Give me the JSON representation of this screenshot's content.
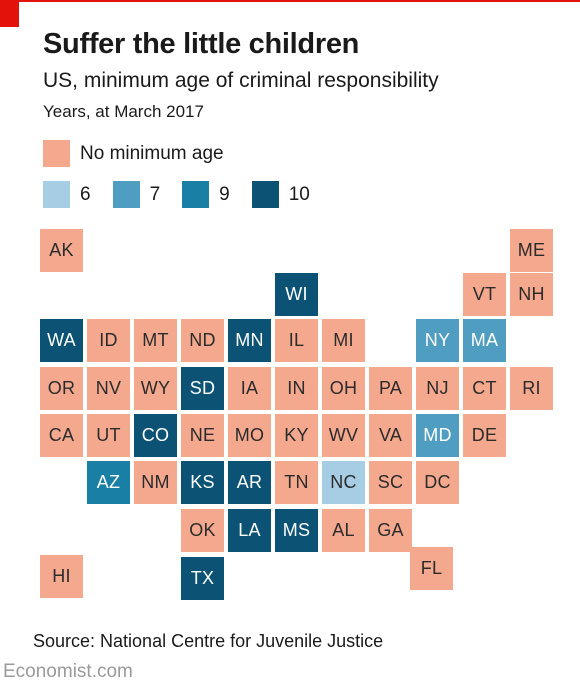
{
  "header": {
    "title": "Suffer the little children",
    "subtitle": "US, minimum age of criminal responsibility",
    "units": "Years, at March 2017"
  },
  "legend": {
    "no_minimum": {
      "label": "No minimum age",
      "color": "#f4a98f"
    },
    "ages": [
      {
        "label": "6",
        "color": "#a6cde3"
      },
      {
        "label": "7",
        "color": "#4f9dc1"
      },
      {
        "label": "9",
        "color": "#1a7fa5"
      },
      {
        "label": "10",
        "color": "#0b5274"
      }
    ]
  },
  "map_data": {
    "type": "tile-map",
    "states": [
      {
        "abbr": "AK",
        "age": null
      },
      {
        "abbr": "ME",
        "age": null
      },
      {
        "abbr": "WI",
        "age": 10
      },
      {
        "abbr": "VT",
        "age": null
      },
      {
        "abbr": "NH",
        "age": null
      },
      {
        "abbr": "WA",
        "age": 10
      },
      {
        "abbr": "ID",
        "age": null
      },
      {
        "abbr": "MT",
        "age": null
      },
      {
        "abbr": "ND",
        "age": null
      },
      {
        "abbr": "MN",
        "age": 10
      },
      {
        "abbr": "IL",
        "age": null
      },
      {
        "abbr": "MI",
        "age": null
      },
      {
        "abbr": "NY",
        "age": 7
      },
      {
        "abbr": "MA",
        "age": 7
      },
      {
        "abbr": "OR",
        "age": null
      },
      {
        "abbr": "NV",
        "age": null
      },
      {
        "abbr": "WY",
        "age": null
      },
      {
        "abbr": "SD",
        "age": 10
      },
      {
        "abbr": "IA",
        "age": null
      },
      {
        "abbr": "IN",
        "age": null
      },
      {
        "abbr": "OH",
        "age": null
      },
      {
        "abbr": "PA",
        "age": null
      },
      {
        "abbr": "NJ",
        "age": null
      },
      {
        "abbr": "CT",
        "age": null
      },
      {
        "abbr": "RI",
        "age": null
      },
      {
        "abbr": "CA",
        "age": null
      },
      {
        "abbr": "UT",
        "age": null
      },
      {
        "abbr": "CO",
        "age": 10
      },
      {
        "abbr": "NE",
        "age": null
      },
      {
        "abbr": "MO",
        "age": null
      },
      {
        "abbr": "KY",
        "age": null
      },
      {
        "abbr": "WV",
        "age": null
      },
      {
        "abbr": "VA",
        "age": null
      },
      {
        "abbr": "MD",
        "age": 7
      },
      {
        "abbr": "DE",
        "age": null
      },
      {
        "abbr": "AZ",
        "age": 9
      },
      {
        "abbr": "NM",
        "age": null
      },
      {
        "abbr": "KS",
        "age": 10
      },
      {
        "abbr": "AR",
        "age": 10
      },
      {
        "abbr": "TN",
        "age": null
      },
      {
        "abbr": "NC",
        "age": 6
      },
      {
        "abbr": "SC",
        "age": null
      },
      {
        "abbr": "DC",
        "age": null
      },
      {
        "abbr": "OK",
        "age": null
      },
      {
        "abbr": "LA",
        "age": 10
      },
      {
        "abbr": "MS",
        "age": 10
      },
      {
        "abbr": "AL",
        "age": null
      },
      {
        "abbr": "GA",
        "age": null
      },
      {
        "abbr": "HI",
        "age": null
      },
      {
        "abbr": "FL",
        "age": null
      },
      {
        "abbr": "TX",
        "age": 10
      }
    ]
  },
  "footer": {
    "source": "Source: National Centre for Juvenile Justice",
    "brand": "Economist.com"
  }
}
